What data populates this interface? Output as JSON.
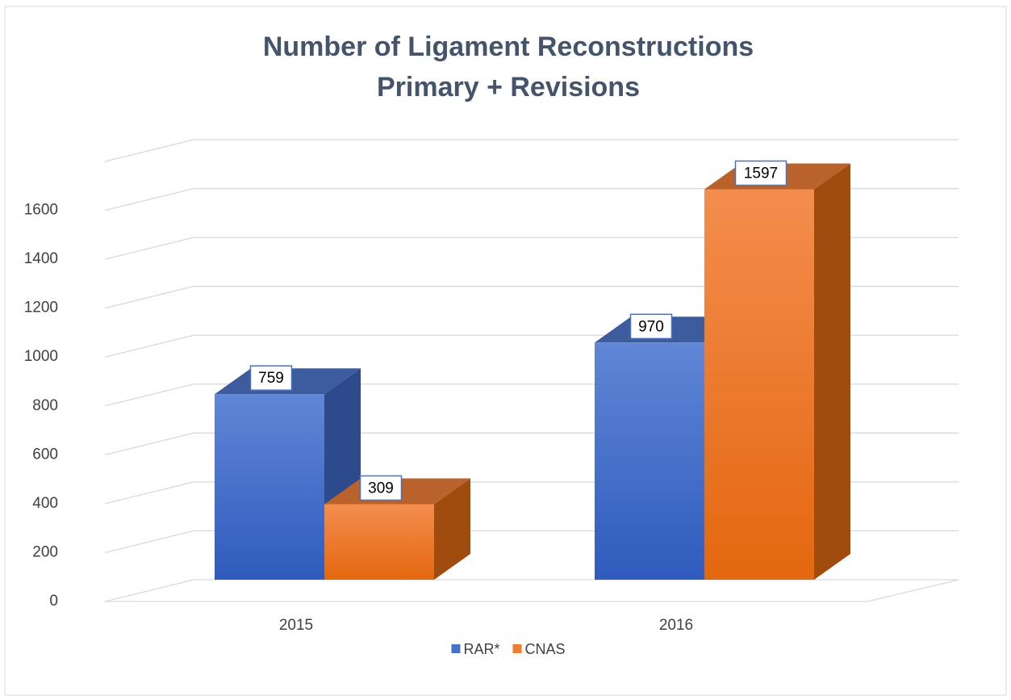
{
  "chart_data": {
    "type": "bar3d",
    "title": "Number of Ligament Reconstructions",
    "subtitle": "Primary + Revisions",
    "categories": [
      "2015",
      "2016"
    ],
    "series": [
      {
        "name": "RAR*",
        "color": "#4472c4",
        "values": [
          759,
          970
        ]
      },
      {
        "name": "CNAS",
        "color": "#ed7d31",
        "values": [
          309,
          1597
        ]
      }
    ],
    "ylim": [
      0,
      1800
    ],
    "yticks": [
      0,
      200,
      400,
      600,
      800,
      1000,
      1200,
      1400,
      1600
    ],
    "grid": true,
    "legend": "bottom"
  }
}
